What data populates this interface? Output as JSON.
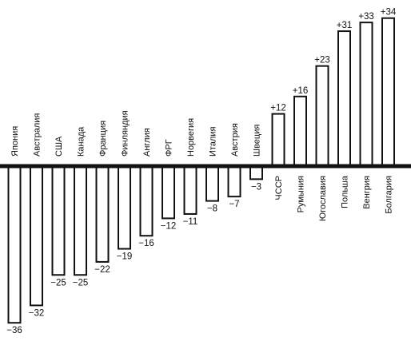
{
  "chart_data": {
    "type": "bar",
    "categories": [
      "Япония",
      "Австралия",
      "США",
      "Канада",
      "Франция",
      "Финляндия",
      "Англия",
      "ФРГ",
      "Норвегия",
      "Италия",
      "Австрия",
      "Швеция",
      "ЧССР",
      "Румыния",
      "Югославия",
      "Польша",
      "Венгрия",
      "Болгария"
    ],
    "values": [
      -36,
      -32,
      -25,
      -25,
      -22,
      -19,
      -16,
      -12,
      -11,
      -8,
      -7,
      -3,
      12,
      16,
      23,
      31,
      33,
      34
    ],
    "value_labels": [
      "−36",
      "−32",
      "−25",
      "−25",
      "−22",
      "−19",
      "−16",
      "−12",
      "−11",
      "−8",
      "−7",
      "−3",
      "+12",
      "+16",
      "+23",
      "+31",
      "+33",
      "+34"
    ],
    "title": "",
    "xlabel": "",
    "ylabel": "",
    "ylim": [
      -36,
      34
    ],
    "grid": false,
    "legend": "none",
    "bar_fill": "#ffffff",
    "stroke_color": "#111111"
  }
}
